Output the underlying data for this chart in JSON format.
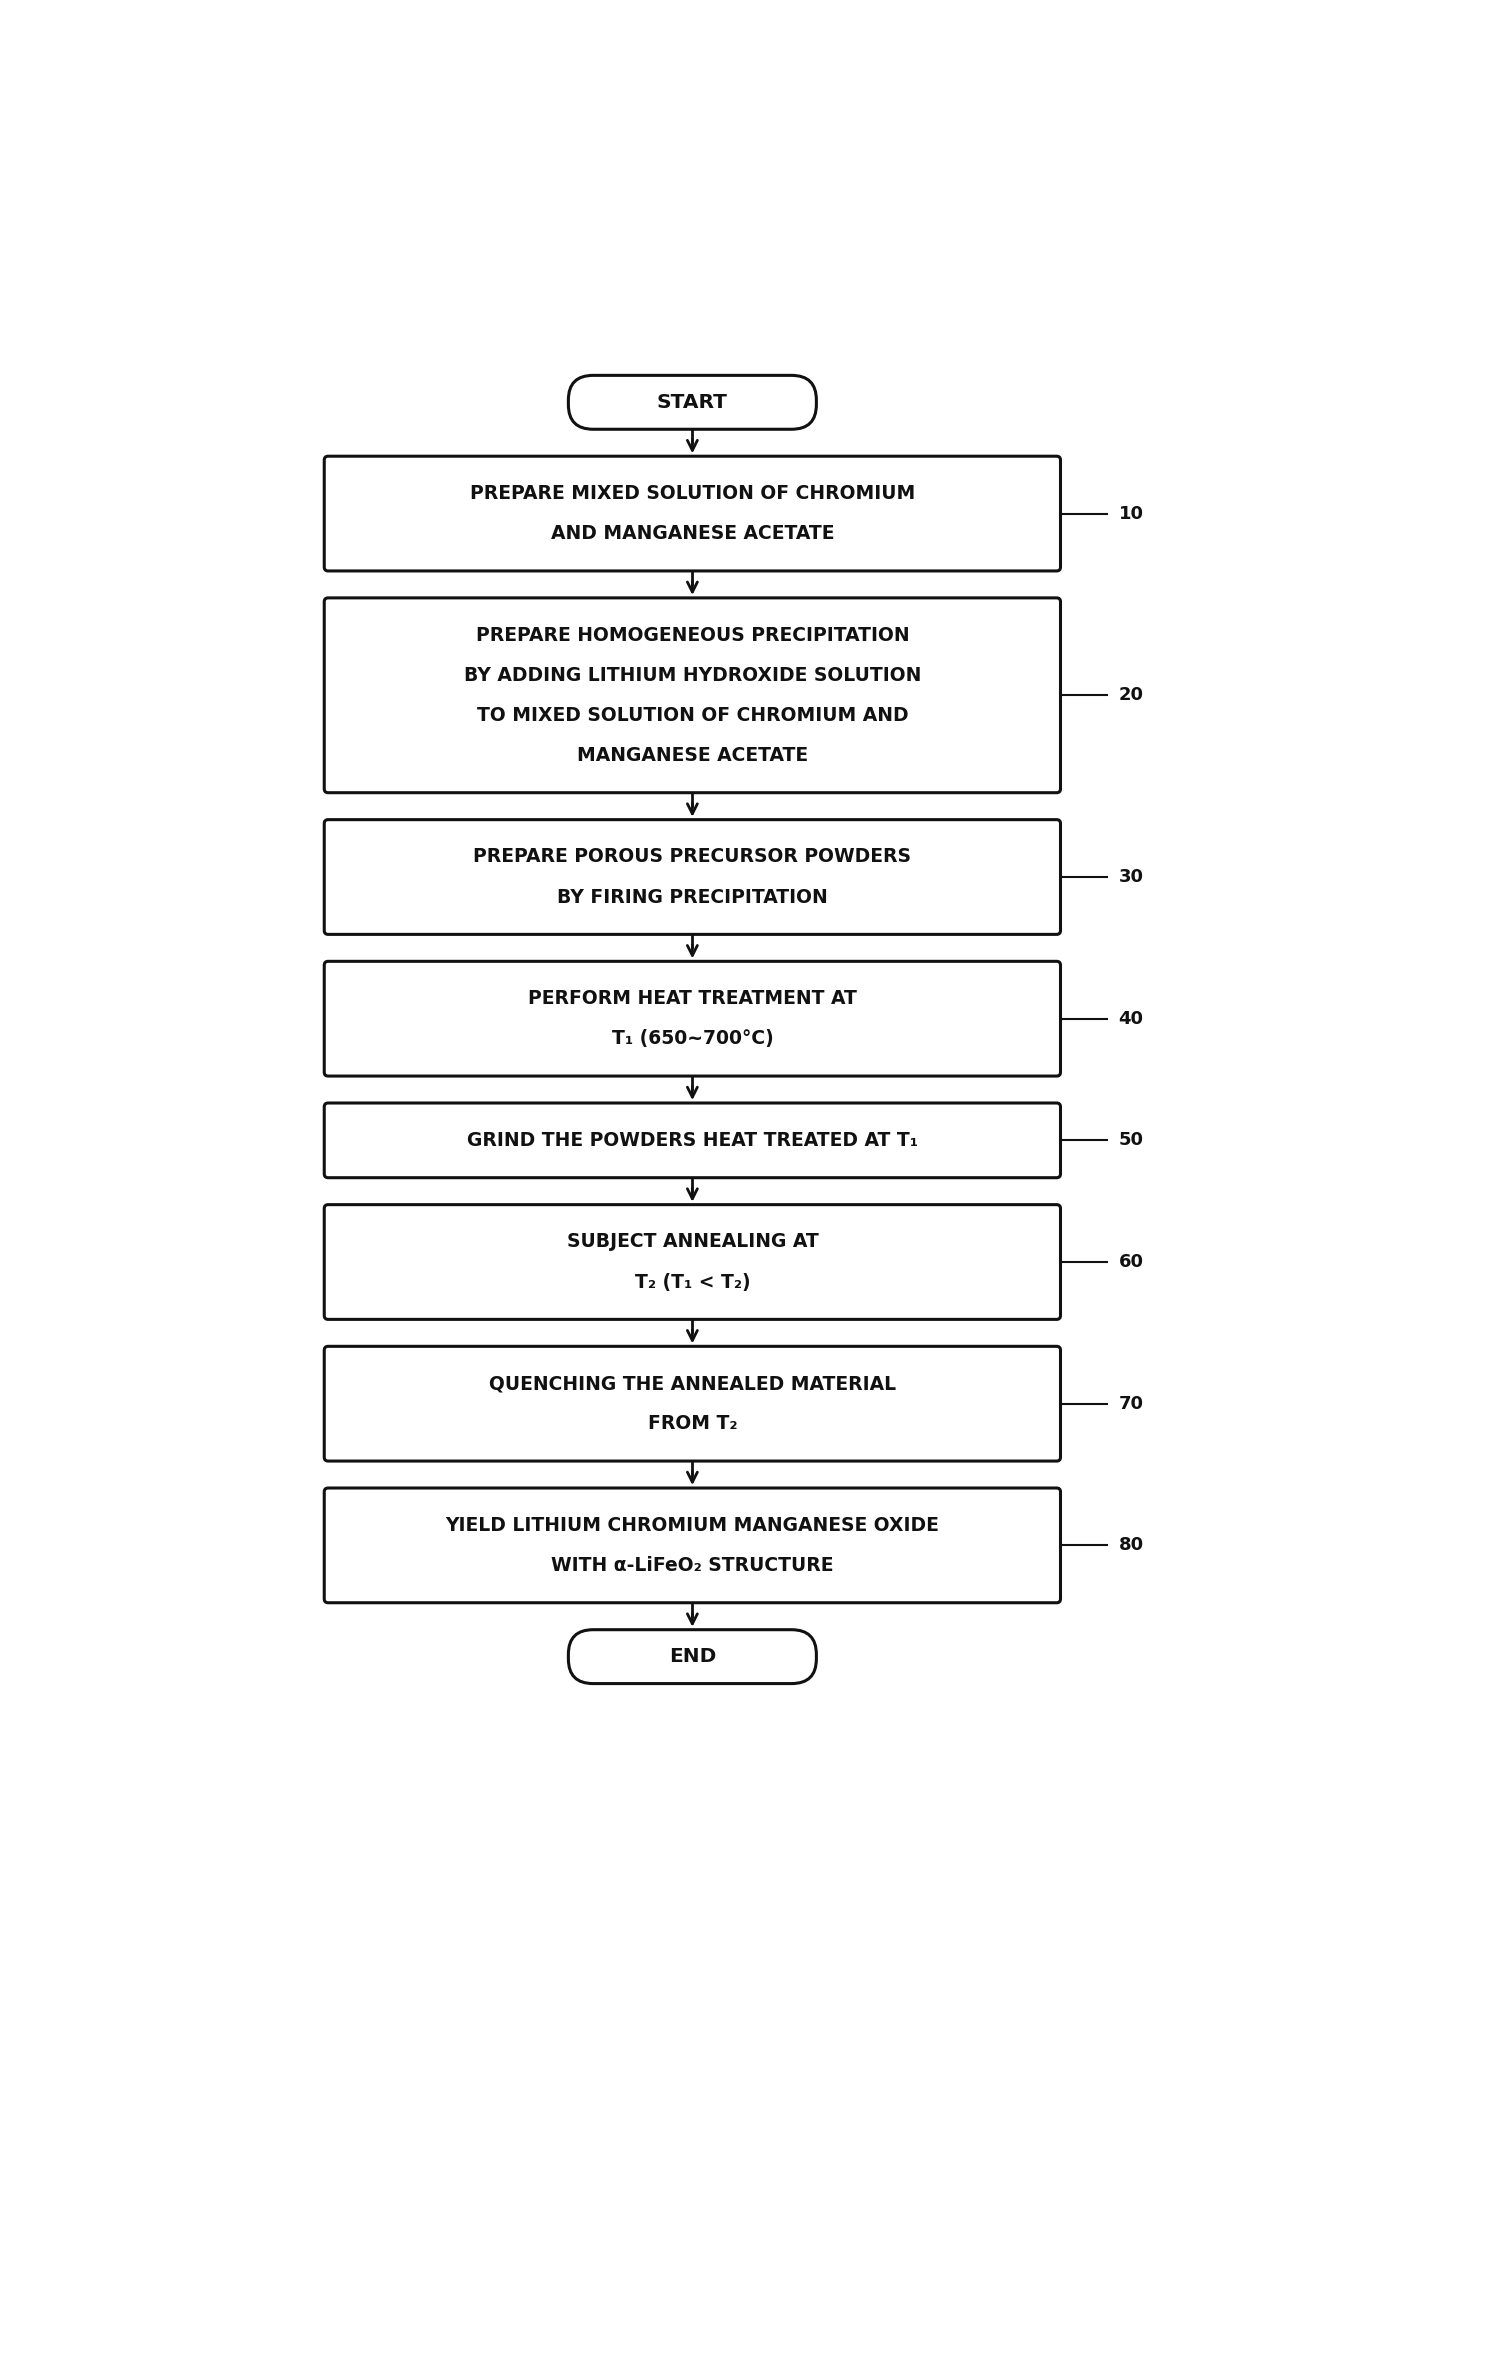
{
  "bg_color": "#ffffff",
  "box_color": "#ffffff",
  "box_edge_color": "#111111",
  "text_color": "#111111",
  "arrow_color": "#111111",
  "start_label": "START",
  "end_label": "END",
  "steps": [
    {
      "id": 10,
      "lines": [
        "PREPARE MIXED SOLUTION OF CHROMIUM",
        "AND MANGANESE ACETATE"
      ]
    },
    {
      "id": 20,
      "lines": [
        "PREPARE HOMOGENEOUS PRECIPITATION",
        "BY ADDING LITHIUM HYDROXIDE SOLUTION",
        "TO MIXED SOLUTION OF CHROMIUM AND",
        "MANGANESE ACETATE"
      ]
    },
    {
      "id": 30,
      "lines": [
        "PREPARE POROUS PRECURSOR POWDERS",
        "BY FIRING PRECIPITATION"
      ]
    },
    {
      "id": 40,
      "lines": [
        "PERFORM HEAT TREATMENT AT",
        "T₁ (650~700°C)"
      ]
    },
    {
      "id": 50,
      "lines": [
        "GRIND THE POWDERS HEAT TREATED AT T₁"
      ]
    },
    {
      "id": 60,
      "lines": [
        "SUBJECT ANNEALING AT",
        "T₂ (T₁ < T₂)"
      ]
    },
    {
      "id": 70,
      "lines": [
        "QUENCHING THE ANNEALED MATERIAL",
        "FROM T₂"
      ]
    },
    {
      "id": 80,
      "lines": [
        "YIELD LITHIUM CHROMIUM MANGANESE OXIDE",
        "WITH α-LiFeO₂ STRUCTURE"
      ]
    }
  ],
  "figsize": [
    15.09,
    23.58
  ],
  "dpi": 100
}
